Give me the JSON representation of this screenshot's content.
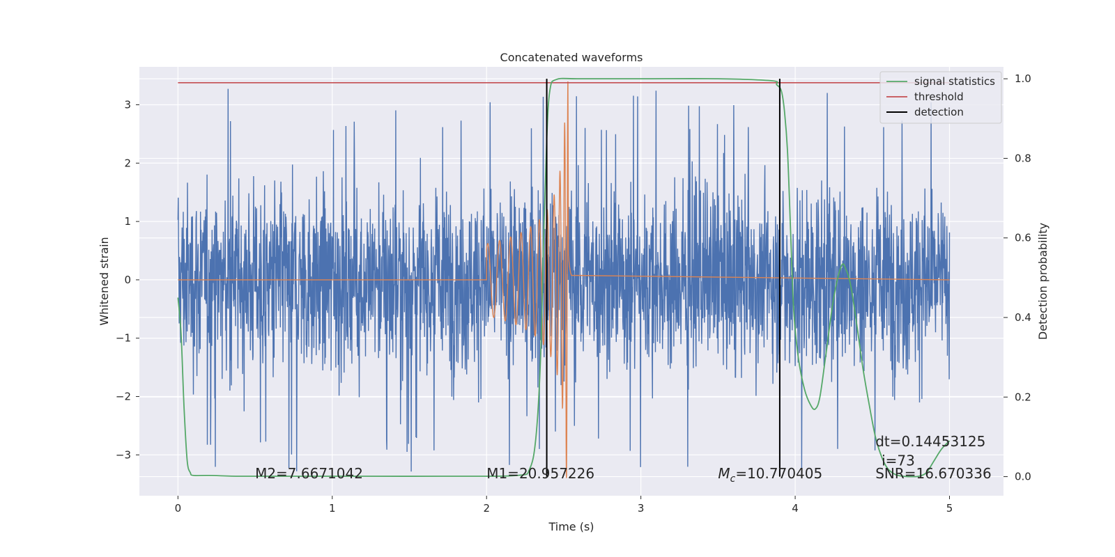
{
  "chart_data": {
    "type": "line",
    "title": "Concatenated waveforms",
    "xlabel": "Time (s)",
    "ylabel": "Whitened strain",
    "y2label": "Detection probability",
    "xlim": [
      -0.25,
      5.35
    ],
    "ylim": [
      -3.7,
      3.65
    ],
    "y2lim": [
      -0.048,
      1.03
    ],
    "grid": true,
    "background": "#eaeaf2",
    "x_ticks": [
      "0",
      "1",
      "2",
      "3",
      "4",
      "5"
    ],
    "x_tick_values": [
      0,
      1,
      2,
      3,
      4,
      5
    ],
    "y_ticks": [
      "3",
      "2",
      "1",
      "0",
      "−1",
      "−2",
      "−3"
    ],
    "y_tick_values": [
      3,
      2,
      1,
      0,
      -1,
      -2,
      -3
    ],
    "y2_ticks": [
      "1.0",
      "0.8",
      "0.6",
      "0.4",
      "0.2",
      "0.0"
    ],
    "y2_tick_values": [
      1.0,
      0.8,
      0.6,
      0.4,
      0.2,
      0.0
    ],
    "legend_position": "top-right",
    "legend": [
      {
        "name": "signal statistics",
        "color": "#55a868"
      },
      {
        "name": "threshold",
        "color": "#c44e52"
      },
      {
        "name": "detection",
        "color": "#000000"
      }
    ],
    "series": [
      {
        "kind": "noise",
        "color": "#4c72b0",
        "x_range": [
          0,
          5
        ],
        "typical_amplitude": 1.2,
        "peak_amplitude": 3.4
      },
      {
        "kind": "chirp",
        "color": "#dd8452",
        "x_range": [
          2.0,
          2.55
        ],
        "merger_time": 2.53,
        "peak_amplitude": 3.4
      },
      {
        "name": "signal statistics",
        "axis": "right",
        "color": "#55a868",
        "x": [
          0,
          0.02,
          0.04,
          0.06,
          0.08,
          0.1,
          0.2,
          0.4,
          0.7,
          1.2,
          1.8,
          2.2,
          2.28,
          2.32,
          2.35,
          2.37,
          2.39,
          2.41,
          2.45,
          2.6,
          3.0,
          3.5,
          3.85,
          3.88,
          3.91,
          3.93,
          3.95,
          3.97,
          3.99,
          4.02,
          4.06,
          4.1,
          4.13,
          4.16,
          4.2,
          4.25,
          4.3,
          4.33,
          4.36,
          4.4,
          4.44,
          4.48,
          4.52,
          4.56,
          4.6,
          4.65,
          4.7,
          4.75,
          4.8,
          4.85,
          4.9,
          4.95,
          5.0
        ],
        "y": [
          0.45,
          0.36,
          0.17,
          0.04,
          0.01,
          0.003,
          0.003,
          0.001,
          0.001,
          0.001,
          0.001,
          0.003,
          0.02,
          0.1,
          0.3,
          0.6,
          0.85,
          0.97,
          0.998,
          1.0,
          1.0,
          1.0,
          0.995,
          0.985,
          0.97,
          0.92,
          0.82,
          0.62,
          0.42,
          0.3,
          0.22,
          0.18,
          0.17,
          0.2,
          0.31,
          0.45,
          0.53,
          0.52,
          0.48,
          0.38,
          0.27,
          0.18,
          0.1,
          0.05,
          0.02,
          0.005,
          0.001,
          0.0,
          0.001,
          0.01,
          0.04,
          0.07,
          0.09
        ]
      },
      {
        "name": "threshold",
        "axis": "right",
        "color": "#c44e52",
        "x": [
          0,
          5
        ],
        "y": [
          0.99,
          0.99
        ]
      },
      {
        "name": "detection",
        "axis": "right",
        "color": "#000000",
        "x_values": [
          2.39,
          3.9
        ],
        "y_range": [
          0.0,
          1.0
        ]
      }
    ],
    "annotations": [
      {
        "id": "m2",
        "text": "M2=7.6671042",
        "x": 0.5,
        "y": -3.4
      },
      {
        "id": "m1",
        "text": "M1=20.957226",
        "x": 2.0,
        "y": -3.4
      },
      {
        "id": "mc",
        "prefix": "M",
        "sub": "c",
        "text": "=10.770405",
        "x": 3.5,
        "y": -3.4
      },
      {
        "id": "dt",
        "text": "dt=0.14453125",
        "x": 4.52,
        "y": -2.85
      },
      {
        "id": "i",
        "text": "i=73",
        "x": 4.56,
        "y": -3.18
      },
      {
        "id": "snr",
        "text": "SNR=16.670336",
        "x": 4.52,
        "y": -3.4
      }
    ]
  }
}
